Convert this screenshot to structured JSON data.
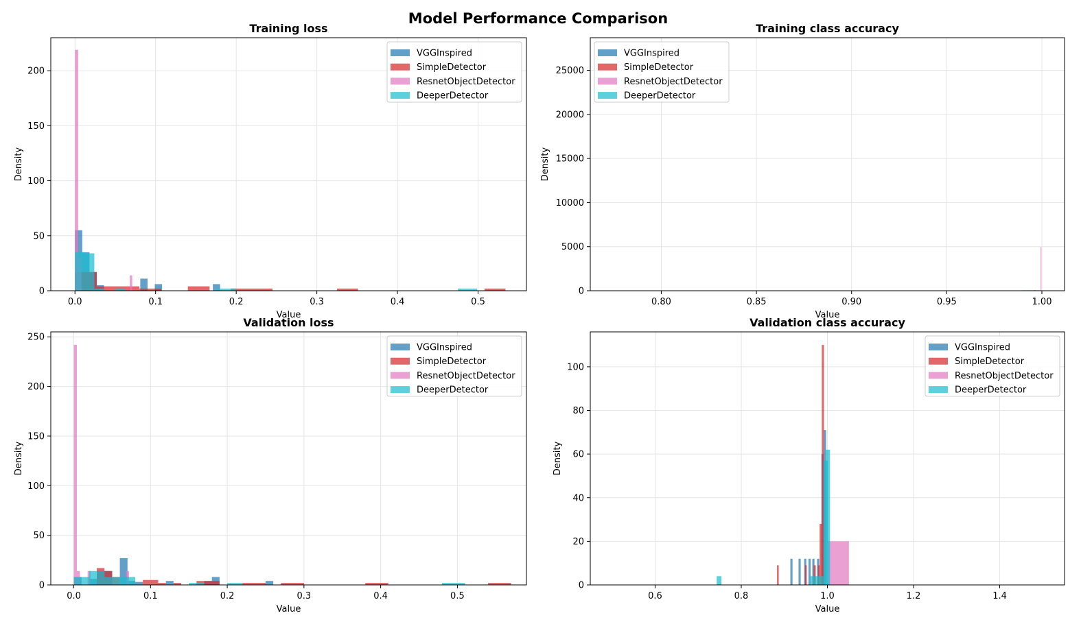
{
  "suptitle": "Model Performance Comparison",
  "colors": {
    "VGGInspired": "#1f77b4",
    "SimpleDetector": "#d62728",
    "ResnetObjectDetector": "#e377c2",
    "DeeperDetector": "#17becf"
  },
  "chart_data": [
    {
      "type": "bar",
      "subtype": "histogram",
      "title": "Training loss",
      "xlabel": "Value",
      "ylabel": "Density",
      "xlim": [
        -0.03,
        0.56
      ],
      "ylim": [
        0,
        230
      ],
      "xticks": [
        0.0,
        0.1,
        0.2,
        0.3,
        0.4,
        0.5
      ],
      "xtick_labels": [
        "0.0",
        "0.1",
        "0.2",
        "0.3",
        "0.4",
        "0.5"
      ],
      "yticks": [
        0,
        50,
        100,
        150,
        200
      ],
      "grid": true,
      "legend_position": "top-right",
      "series": [
        {
          "name": "VGGInspired",
          "bins": [
            [
              0.0,
              0.009,
              55
            ],
            [
              0.009,
              0.018,
              35
            ],
            [
              0.018,
              0.027,
              17
            ],
            [
              0.027,
              0.036,
              5
            ],
            [
              0.081,
              0.09,
              11
            ],
            [
              0.099,
              0.108,
              6
            ],
            [
              0.171,
              0.18,
              6
            ]
          ]
        },
        {
          "name": "SimpleDetector",
          "bins": [
            [
              0.0,
              0.027,
              17
            ],
            [
              0.027,
              0.053,
              4
            ],
            [
              0.053,
              0.08,
              4
            ],
            [
              0.08,
              0.107,
              2
            ],
            [
              0.14,
              0.167,
              4
            ],
            [
              0.193,
              0.245,
              2
            ],
            [
              0.325,
              0.351,
              2
            ],
            [
              0.508,
              0.534,
              2
            ]
          ]
        },
        {
          "name": "ResnetObjectDetector",
          "bins": [
            [
              0.0,
              0.004,
              219
            ],
            [
              0.004,
              0.008,
              30
            ],
            [
              0.068,
              0.071,
              14
            ]
          ]
        },
        {
          "name": "DeeperDetector",
          "bins": [
            [
              0.0,
              0.012,
              35
            ],
            [
              0.012,
              0.024,
              34
            ],
            [
              0.024,
              0.036,
              2
            ],
            [
              0.05,
              0.062,
              2
            ],
            [
              0.176,
              0.2,
              2
            ],
            [
              0.475,
              0.499,
              2
            ]
          ]
        }
      ]
    },
    {
      "type": "bar",
      "subtype": "histogram",
      "title": "Training class accuracy",
      "xlabel": "Value",
      "ylabel": "Density",
      "xlim": [
        0.7627,
        1.0119
      ],
      "ylim": [
        0,
        28700
      ],
      "xticks": [
        0.8,
        0.85,
        0.9,
        0.95,
        1.0
      ],
      "xtick_labels": [
        "0.80",
        "0.85",
        "0.90",
        "0.95",
        "1.00"
      ],
      "yticks": [
        0,
        5000,
        10000,
        15000,
        20000,
        25000
      ],
      "grid": true,
      "legend_position": "top-left",
      "series": [
        {
          "name": "VGGInspired",
          "bins": [
            [
              0.996,
              0.9965,
              70
            ]
          ]
        },
        {
          "name": "SimpleDetector",
          "bins": []
        },
        {
          "name": "ResnetObjectDetector",
          "bins": [
            [
              0.9993,
              0.9997,
              4960
            ]
          ]
        },
        {
          "name": "DeeperDetector",
          "bins": [
            [
              0.9895,
              0.999,
              50
            ]
          ]
        }
      ]
    },
    {
      "type": "bar",
      "subtype": "histogram",
      "title": "Validation loss",
      "xlabel": "Value",
      "ylabel": "Density",
      "xlim": [
        -0.03,
        0.59
      ],
      "ylim": [
        0,
        255
      ],
      "xticks": [
        0.0,
        0.1,
        0.2,
        0.3,
        0.4,
        0.5
      ],
      "xtick_labels": [
        "0.0",
        "0.1",
        "0.2",
        "0.3",
        "0.4",
        "0.5"
      ],
      "yticks": [
        0,
        50,
        100,
        150,
        200,
        250
      ],
      "grid": true,
      "legend_position": "top-right",
      "series": [
        {
          "name": "VGGInspired",
          "bins": [
            [
              0.0,
              0.01,
              8
            ],
            [
              0.02,
              0.03,
              6
            ],
            [
              0.03,
              0.04,
              14
            ],
            [
              0.04,
              0.05,
              14
            ],
            [
              0.06,
              0.07,
              27
            ],
            [
              0.07,
              0.08,
              4
            ],
            [
              0.08,
              0.09,
              3
            ],
            [
              0.12,
              0.13,
              4
            ],
            [
              0.17,
              0.18,
              4
            ],
            [
              0.18,
              0.19,
              8
            ],
            [
              0.25,
              0.26,
              4
            ]
          ]
        },
        {
          "name": "SimpleDetector",
          "bins": [
            [
              0.03,
              0.04,
              17
            ],
            [
              0.04,
              0.05,
              14
            ],
            [
              0.05,
              0.06,
              8
            ],
            [
              0.09,
              0.1,
              5
            ],
            [
              0.1,
              0.11,
              5
            ],
            [
              0.11,
              0.12,
              2
            ],
            [
              0.13,
              0.14,
              2
            ],
            [
              0.16,
              0.19,
              4
            ],
            [
              0.22,
              0.25,
              2
            ],
            [
              0.27,
              0.3,
              2
            ],
            [
              0.38,
              0.41,
              2
            ],
            [
              0.54,
              0.57,
              2
            ]
          ]
        },
        {
          "name": "ResnetObjectDetector",
          "bins": [
            [
              0.0,
              0.004,
              242
            ],
            [
              0.004,
              0.008,
              14
            ],
            [
              0.018,
              0.022,
              14
            ],
            [
              0.068,
              0.072,
              14
            ]
          ]
        },
        {
          "name": "DeeperDetector",
          "bins": [
            [
              0.0,
              0.02,
              8
            ],
            [
              0.02,
              0.04,
              14
            ],
            [
              0.04,
              0.06,
              8
            ],
            [
              0.06,
              0.08,
              8
            ],
            [
              0.15,
              0.17,
              2
            ],
            [
              0.2,
              0.22,
              2
            ],
            [
              0.48,
              0.51,
              2
            ]
          ]
        }
      ]
    },
    {
      "type": "bar",
      "subtype": "histogram",
      "title": "Validation class accuracy",
      "xlabel": "Value",
      "ylabel": "Density",
      "xlim": [
        0.4495,
        1.5505
      ],
      "ylim": [
        0,
        116
      ],
      "xticks": [
        0.6,
        0.8,
        1.0,
        1.2,
        1.4
      ],
      "xtick_labels": [
        "0.6",
        "0.8",
        "1.0",
        "1.2",
        "1.4"
      ],
      "yticks": [
        0,
        20,
        40,
        60,
        80,
        100
      ],
      "grid": true,
      "legend_position": "top-right",
      "series": [
        {
          "name": "VGGInspired",
          "bins": [
            [
              0.914,
              0.919,
              12
            ],
            [
              0.933,
              0.938,
              12
            ],
            [
              0.946,
              0.951,
              12
            ],
            [
              0.956,
              0.961,
              12
            ],
            [
              0.965,
              0.97,
              12
            ],
            [
              0.976,
              0.981,
              12
            ],
            [
              0.986,
              0.991,
              60
            ],
            [
              0.992,
              0.997,
              71
            ]
          ]
        },
        {
          "name": "SimpleDetector",
          "bins": [
            [
              0.883,
              0.887,
              9
            ],
            [
              0.948,
              0.952,
              9
            ],
            [
              0.968,
              0.973,
              9
            ],
            [
              0.978,
              0.982,
              9
            ],
            [
              0.982,
              0.987,
              28
            ],
            [
              0.987,
              0.992,
              110
            ]
          ]
        },
        {
          "name": "ResnetObjectDetector",
          "bins": [
            [
              1.0,
              1.05,
              20
            ]
          ]
        },
        {
          "name": "DeeperDetector",
          "bins": [
            [
              0.743,
              0.754,
              4
            ],
            [
              0.961,
              0.971,
              4
            ],
            [
              0.971,
              0.981,
              4
            ],
            [
              0.981,
              0.991,
              4
            ],
            [
              0.991,
              1.001,
              57
            ],
            [
              0.996,
              1.006,
              62
            ]
          ]
        }
      ]
    }
  ]
}
